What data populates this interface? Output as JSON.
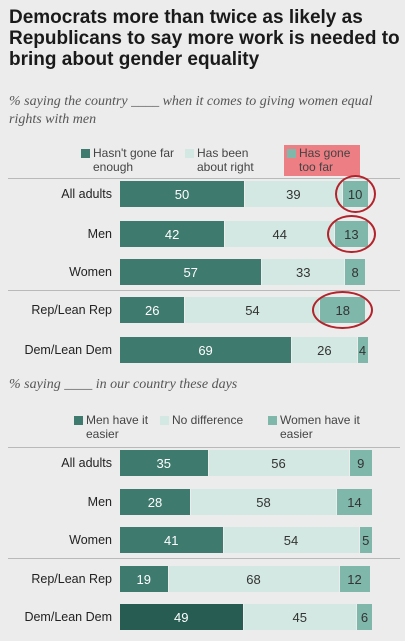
{
  "title": "Democrats more than twice as likely as Republicans to say more work is needed to bring about gender equality",
  "colors": {
    "dark": "#3e7a6e",
    "light": "#d3e8e2",
    "mid": "#7fb7aa",
    "darker": "#275c52",
    "highlight": "#ec7e84",
    "circle": "#b3232b"
  },
  "chart_data": [
    {
      "type": "bar",
      "subtitle": "% saying the country ____ when it comes to giving women equal rights with men",
      "categories": [
        "All adults",
        "Men",
        "Women",
        "Rep/Lean Rep",
        "Dem/Lean Dem"
      ],
      "series": [
        {
          "name": "Hasn't gone far enough",
          "values": [
            50,
            42,
            57,
            26,
            69
          ]
        },
        {
          "name": "Has been about right",
          "values": [
            39,
            44,
            33,
            54,
            26
          ]
        },
        {
          "name": "Has gone too far",
          "values": [
            10,
            13,
            8,
            18,
            4
          ]
        }
      ],
      "circled": [
        [
          0,
          2
        ],
        [
          1,
          2
        ],
        [
          3,
          2
        ]
      ]
    },
    {
      "type": "bar",
      "subtitle": "% saying ____ in our country these days",
      "categories": [
        "All adults",
        "Men",
        "Women",
        "Rep/Lean Rep",
        "Dem/Lean Dem"
      ],
      "series": [
        {
          "name": "Men have it easier",
          "values": [
            35,
            28,
            41,
            19,
            49
          ]
        },
        {
          "name": "No difference",
          "values": [
            56,
            58,
            54,
            68,
            45
          ]
        },
        {
          "name": "Women have it easier",
          "values": [
            9,
            14,
            5,
            12,
            6
          ]
        }
      ]
    }
  ]
}
